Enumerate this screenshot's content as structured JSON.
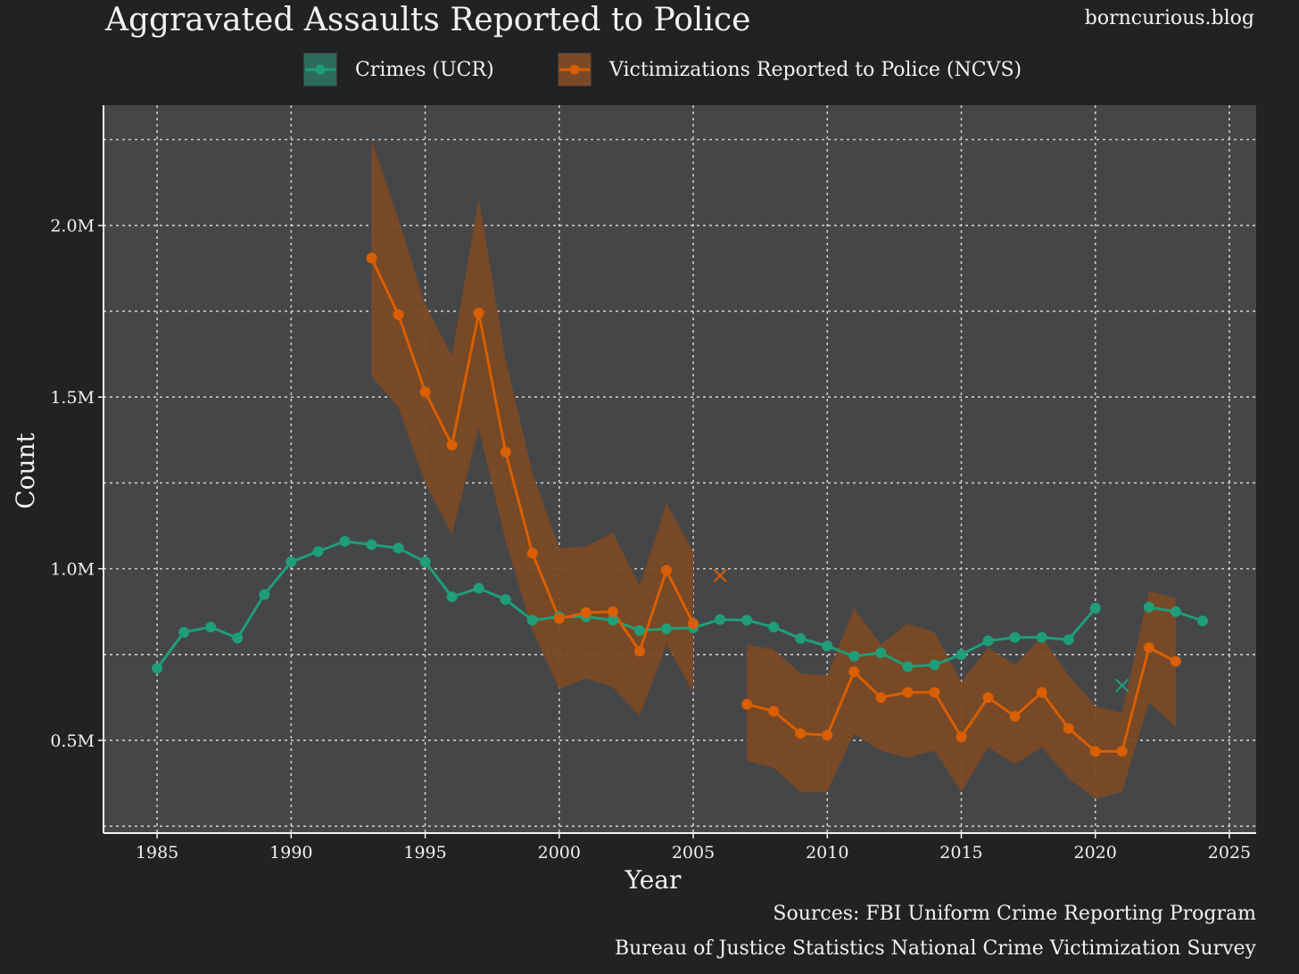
{
  "header": {
    "title": "Aggravated Assaults Reported to Police",
    "site": "borncurious.blog"
  },
  "legend": [
    {
      "label": "Crimes (UCR)",
      "color": "#1f9e77",
      "fill": "#2c6b59"
    },
    {
      "label": "Victimizations Reported to Police (NCVS)",
      "color": "#d95f02",
      "fill": "#7a4a26"
    }
  ],
  "footer": {
    "source1": "Sources: FBI Uniform Crime Reporting Program",
    "source2": "Bureau of Justice Statistics National Crime Victimization Survey"
  },
  "colors": {
    "background": "#212224",
    "panel": "#454648",
    "grid": "#d9d9d9",
    "ucr": "#1f9e77",
    "ncvs": "#d95f02",
    "ncvs_band": "#7a4a26"
  },
  "chart_data": {
    "type": "line",
    "title": "Aggravated Assaults Reported to Police",
    "xlabel": "Year",
    "ylabel": "Count",
    "xlim": [
      1983,
      2026
    ],
    "ylim": [
      230000,
      2350000
    ],
    "x_ticks": [
      1985,
      1990,
      1995,
      2000,
      2005,
      2010,
      2015,
      2020,
      2025
    ],
    "y_ticks": [
      {
        "value": 500000,
        "label": "0.5M"
      },
      {
        "value": 1000000,
        "label": "1.0M"
      },
      {
        "value": 1500000,
        "label": "1.5M"
      },
      {
        "value": 2000000,
        "label": "2.0M"
      }
    ],
    "y_minor_grid": [
      250000,
      750000,
      1250000,
      1750000,
      2250000
    ],
    "grid": true,
    "legend_position": "top",
    "series": [
      {
        "name": "Crimes (UCR)",
        "color": "#1f9e77",
        "segments": [
          {
            "x": [
              1985,
              1986,
              1987,
              1988,
              1989,
              1990,
              1991,
              1992,
              1993,
              1994,
              1995,
              1996,
              1997,
              1998,
              1999,
              2000,
              2001,
              2002,
              2003,
              2004,
              2005,
              2006,
              2007,
              2008,
              2009,
              2010,
              2011,
              2012,
              2013,
              2014,
              2015,
              2016,
              2017,
              2018,
              2019,
              2020
            ],
            "y": [
              710000,
              815000,
              830000,
              798000,
              925000,
              1020000,
              1050000,
              1080000,
              1070000,
              1060000,
              1020000,
              918000,
              943000,
              910000,
              850000,
              860000,
              860000,
              850000,
              820000,
              825000,
              828000,
              852000,
              850000,
              830000,
              797000,
              775000,
              745000,
              755000,
              715000,
              720000,
              750000,
              790000,
              800000,
              800000,
              793000,
              885000
            ]
          },
          {
            "x": [
              2022,
              2023,
              2024
            ],
            "y": [
              888000,
              875000,
              848000
            ]
          }
        ],
        "excluded_points": [
          {
            "x": 2021,
            "y": 660000
          }
        ]
      },
      {
        "name": "Victimizations Reported to Police (NCVS)",
        "color": "#d95f02",
        "segments": [
          {
            "x": [
              1993,
              1994,
              1995,
              1996,
              1997,
              1998,
              1999,
              2000,
              2001,
              2002,
              2003,
              2004,
              2005
            ],
            "y": [
              1905000,
              1740000,
              1515000,
              1360000,
              1745000,
              1340000,
              1045000,
              855000,
              872000,
              875000,
              760000,
              995000,
              840000
            ],
            "lower": [
              1560000,
              1470000,
              1250000,
              1100000,
              1410000,
              1080000,
              820000,
              650000,
              680000,
              655000,
              570000,
              780000,
              640000
            ],
            "upper": [
              2250000,
              2020000,
              1770000,
              1620000,
              2080000,
              1610000,
              1280000,
              1060000,
              1065000,
              1105000,
              950000,
              1190000,
              1050000
            ]
          },
          {
            "x": [
              2007,
              2008,
              2009,
              2010,
              2011,
              2012,
              2013,
              2014,
              2015,
              2016,
              2017,
              2018,
              2019,
              2020,
              2021,
              2022,
              2023
            ],
            "y": [
              605000,
              585000,
              520000,
              515000,
              700000,
              625000,
              640000,
              640000,
              510000,
              625000,
              570000,
              640000,
              535000,
              468000,
              468000,
              770000,
              730000
            ],
            "lower": [
              440000,
              420000,
              350000,
              350000,
              520000,
              470000,
              450000,
              470000,
              350000,
              480000,
              430000,
              480000,
              390000,
              330000,
              350000,
              610000,
              540000
            ],
            "upper": [
              780000,
              765000,
              695000,
              690000,
              885000,
              780000,
              840000,
              815000,
              670000,
              770000,
              720000,
              800000,
              690000,
              600000,
              580000,
              935000,
              915000
            ]
          }
        ],
        "excluded_points": [
          {
            "x": 2006,
            "y": 980000
          }
        ]
      }
    ]
  }
}
